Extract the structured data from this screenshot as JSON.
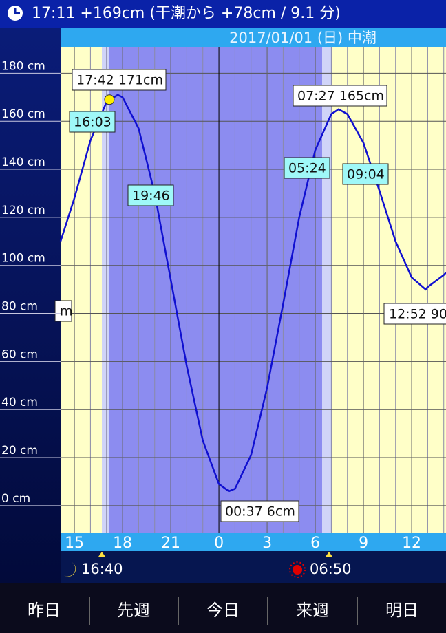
{
  "header": {
    "status": "17:11 +169cm (干潮から +78cm / 9.1 分)"
  },
  "chart_data": {
    "type": "line",
    "subtitle": "2017/01/01 (日) 中潮",
    "x": [
      14.14,
      15,
      16,
      17,
      17.7,
      18,
      19,
      20,
      21,
      22,
      23,
      24,
      24.62,
      25,
      26,
      27,
      28,
      29,
      30,
      31,
      31.45,
      32,
      33,
      34,
      35,
      36,
      36.87,
      37,
      38,
      38.14
    ],
    "values": [
      110,
      128,
      152,
      168,
      171,
      170,
      157,
      130,
      94,
      58,
      27,
      9,
      6,
      7,
      21,
      49,
      84,
      120,
      148,
      163,
      165,
      163,
      151,
      131,
      110,
      95,
      90,
      91,
      96,
      97
    ],
    "color": "#1010d0",
    "marker": {
      "x": 17.18,
      "y": 169,
      "color": "#ffee00"
    },
    "xlim": [
      14.14,
      38.14
    ],
    "xticks": [
      15,
      18,
      21,
      {
        "value": 24,
        "label": "0"
      },
      {
        "value": 27,
        "label": "3"
      },
      {
        "value": 30,
        "label": "6"
      },
      {
        "value": 33,
        "label": "9"
      },
      {
        "value": 36,
        "label": "12"
      }
    ],
    "ylim": [
      -11.5,
      191
    ],
    "yticks": [
      {
        "value": 0,
        "label": "0 cm"
      },
      {
        "value": 20,
        "label": "20 cm"
      },
      {
        "value": 40,
        "label": "40 cm"
      },
      {
        "value": 60,
        "label": "60 cm"
      },
      {
        "value": 80,
        "label": "80 cm"
      },
      {
        "value": 100,
        "label": "100 cm"
      },
      {
        "value": 120,
        "label": "120 cm"
      },
      {
        "value": 140,
        "label": "140 cm"
      },
      {
        "value": 160,
        "label": "160 cm"
      },
      {
        "value": 180,
        "label": "180 cm"
      }
    ],
    "grid": true,
    "annotations": [
      "17:42 171cm",
      "16:03",
      "19:46",
      "07:27 165cm",
      "05:24",
      "09:04",
      "00:37 6cm",
      "12:52 90",
      "m"
    ]
  },
  "sun_moon": {
    "moon": "16:40",
    "sun": "06:50"
  },
  "buttons": [
    "昨日",
    "先週",
    "今日",
    "来週",
    "明日"
  ]
}
